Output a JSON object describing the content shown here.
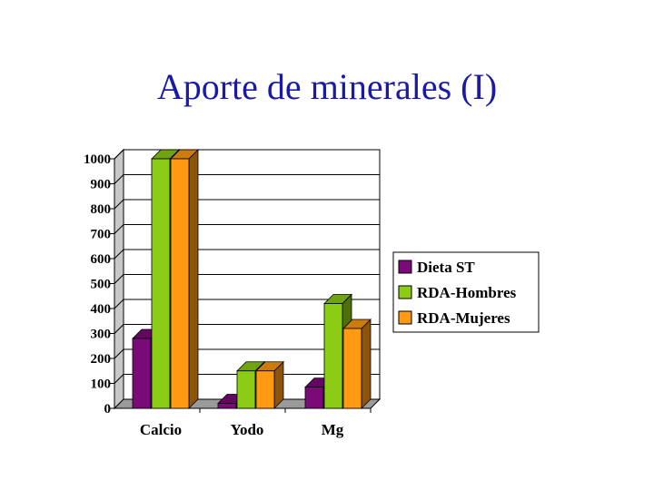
{
  "slide": {
    "title": "Aporte de minerales (I)"
  },
  "chart_data": {
    "type": "bar",
    "title": "",
    "xlabel": "",
    "ylabel": "",
    "categories": [
      "Calcio",
      "Yodo",
      "Mg"
    ],
    "series": [
      {
        "name": "Dieta ST",
        "values": [
          280,
          20,
          85
        ],
        "color": "#7a0a78"
      },
      {
        "name": "RDA-Hombres",
        "values": [
          1000,
          150,
          420
        ],
        "color": "#8ccc14"
      },
      {
        "name": "RDA-Mujeres",
        "values": [
          1000,
          150,
          320
        ],
        "color": "#ff9a12"
      }
    ],
    "ylim": [
      0,
      1000
    ],
    "yticks": [
      0,
      100,
      200,
      300,
      400,
      500,
      600,
      700,
      800,
      900,
      1000
    ],
    "grid": true,
    "legend": "right",
    "style": "3d-bar"
  }
}
